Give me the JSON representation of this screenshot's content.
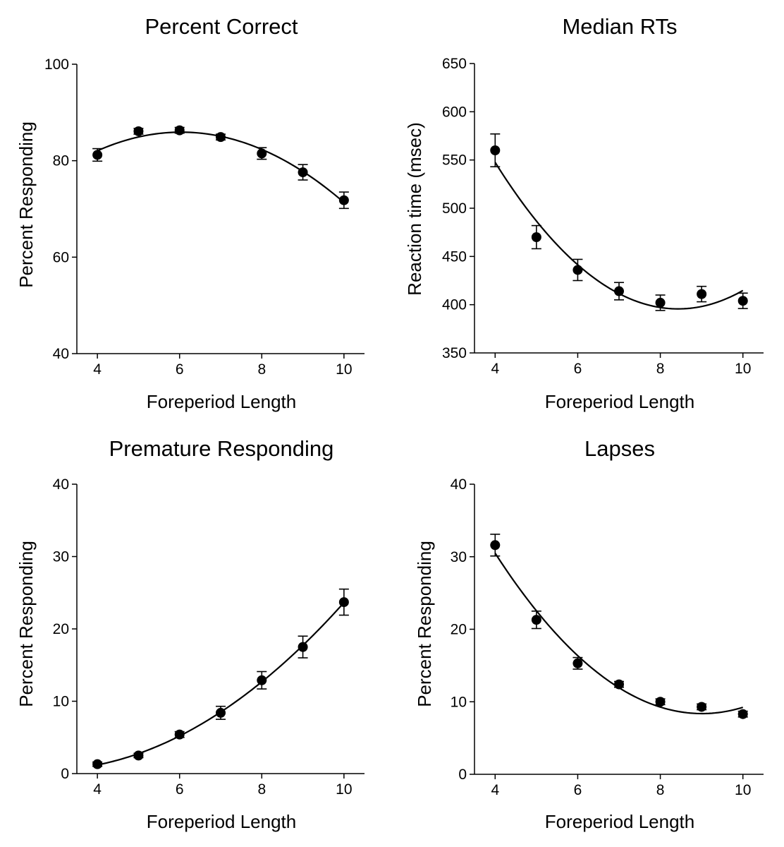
{
  "chart_data": [
    {
      "type": "scatter",
      "title": "Percent Correct",
      "xlabel": "Foreperiod Length",
      "ylabel": "Percent Responding",
      "xlim": [
        3.5,
        10.5
      ],
      "ylim": [
        40,
        100
      ],
      "xticks": [
        4,
        6,
        8,
        10
      ],
      "yticks": [
        40,
        60,
        80,
        100
      ],
      "x": [
        4,
        5,
        6,
        7,
        8,
        9,
        10
      ],
      "y": [
        81.2,
        86.1,
        86.3,
        84.9,
        81.5,
        77.6,
        71.8
      ],
      "yerr": [
        1.3,
        0.6,
        0.6,
        0.6,
        1.2,
        1.6,
        1.7
      ],
      "fit": {
        "type": "quadratic",
        "points": [
          [
            4,
            81.9
          ],
          [
            6,
            86.1
          ],
          [
            8,
            83.3
          ],
          [
            10,
            72.0
          ]
        ]
      }
    },
    {
      "type": "scatter",
      "title": "Median RTs",
      "xlabel": "Foreperiod Length",
      "ylabel": "Reaction time (msec)",
      "xlim": [
        3.5,
        10.5
      ],
      "ylim": [
        350,
        650
      ],
      "xticks": [
        4,
        6,
        8,
        10
      ],
      "yticks": [
        350,
        400,
        450,
        500,
        550,
        600,
        650
      ],
      "x": [
        4,
        5,
        6,
        7,
        8,
        9,
        10
      ],
      "y": [
        560,
        470,
        436,
        414,
        402,
        411,
        404
      ],
      "yerr": [
        17,
        12,
        11,
        9,
        8,
        8,
        8
      ],
      "fit": {
        "type": "quadratic",
        "points": [
          [
            4,
            547
          ],
          [
            6,
            427
          ],
          [
            8,
            397
          ],
          [
            10,
            414
          ]
        ]
      }
    },
    {
      "type": "scatter",
      "title": "Premature Responding",
      "xlabel": "Foreperiod Length",
      "ylabel": "Percent Responding",
      "xlim": [
        3.5,
        10.5
      ],
      "ylim": [
        0,
        40
      ],
      "xticks": [
        4,
        6,
        8,
        10
      ],
      "yticks": [
        0,
        10,
        20,
        30,
        40
      ],
      "x": [
        4,
        5,
        6,
        7,
        8,
        9,
        10
      ],
      "y": [
        1.3,
        2.5,
        5.4,
        8.4,
        12.9,
        17.5,
        23.7
      ],
      "yerr": [
        0.3,
        0.3,
        0.4,
        0.9,
        1.2,
        1.5,
        1.8
      ],
      "fit": {
        "type": "quadratic",
        "points": [
          [
            4,
            1.3
          ],
          [
            6,
            5.2
          ],
          [
            8,
            12.6
          ],
          [
            10,
            23.5
          ]
        ]
      }
    },
    {
      "type": "scatter",
      "title": "Lapses",
      "xlabel": "Foreperiod Length",
      "ylabel": "Percent Responding",
      "xlim": [
        3.5,
        10.5
      ],
      "ylim": [
        0,
        40
      ],
      "xticks": [
        4,
        6,
        8,
        10
      ],
      "yticks": [
        0,
        10,
        20,
        30,
        40
      ],
      "x": [
        4,
        5,
        6,
        7,
        8,
        9,
        10
      ],
      "y": [
        31.6,
        21.3,
        15.3,
        12.4,
        10.0,
        9.3,
        8.3
      ],
      "yerr": [
        1.5,
        1.2,
        0.8,
        0.4,
        0.4,
        0.4,
        0.4
      ],
      "fit": {
        "type": "quadratic",
        "points": [
          [
            4,
            30.8
          ],
          [
            6,
            15.9
          ],
          [
            8,
            9.4
          ],
          [
            10,
            9.2
          ]
        ]
      }
    }
  ]
}
